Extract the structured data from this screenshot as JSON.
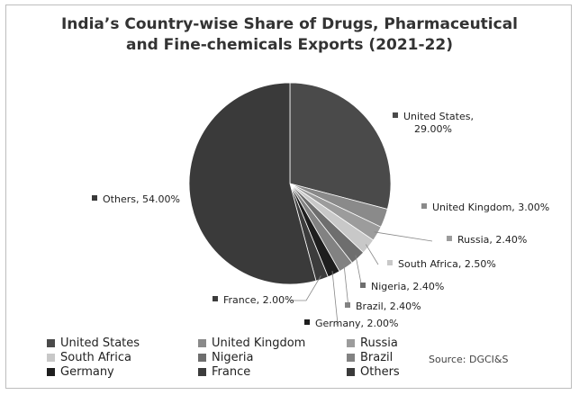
{
  "chart_data": {
    "type": "pie",
    "title": "India’s Country-wise Share of Drugs, Pharmaceutical and Fine-chemicals Exports (2021-22)",
    "title_lines": [
      "India’s Country-wise Share of Drugs, Pharmaceutical",
      "and Fine-chemicals Exports (2021-22)"
    ],
    "slices": [
      {
        "name": "United States",
        "value": 29.0,
        "label": "United States,|29.00%",
        "color": "#4a4a4a"
      },
      {
        "name": "United Kingdom",
        "value": 3.0,
        "label": "United Kingdom, 3.00%",
        "color": "#8a8a8a"
      },
      {
        "name": "Russia",
        "value": 2.4,
        "label": "Russia, 2.40%",
        "color": "#9c9c9c"
      },
      {
        "name": "South Africa",
        "value": 2.5,
        "label": "South Africa, 2.50%",
        "color": "#c8c8c8"
      },
      {
        "name": "Nigeria",
        "value": 2.4,
        "label": "Nigeria, 2.40%",
        "color": "#6e6e6e"
      },
      {
        "name": "Brazil",
        "value": 2.4,
        "label": "Brazil, 2.40%",
        "color": "#828282"
      },
      {
        "name": "Germany",
        "value": 2.0,
        "label": "Germany, 2.00%",
        "color": "#1e1e1e"
      },
      {
        "name": "France",
        "value": 2.0,
        "label": "France, 2.00%",
        "color": "#3c3c3c"
      },
      {
        "name": "Others",
        "value": 54.0,
        "label": "Others, 54.00%",
        "color": "#3a3a3a"
      }
    ],
    "legend": [
      "United States",
      "United Kingdom",
      "Russia",
      "South Africa",
      "Nigeria",
      "Brazil",
      "Germany",
      "France",
      "Others"
    ],
    "legend_placement": "bottom-left",
    "start_angle_deg": 0,
    "direction": "clockwise"
  },
  "source": "Source: DGCI&S"
}
